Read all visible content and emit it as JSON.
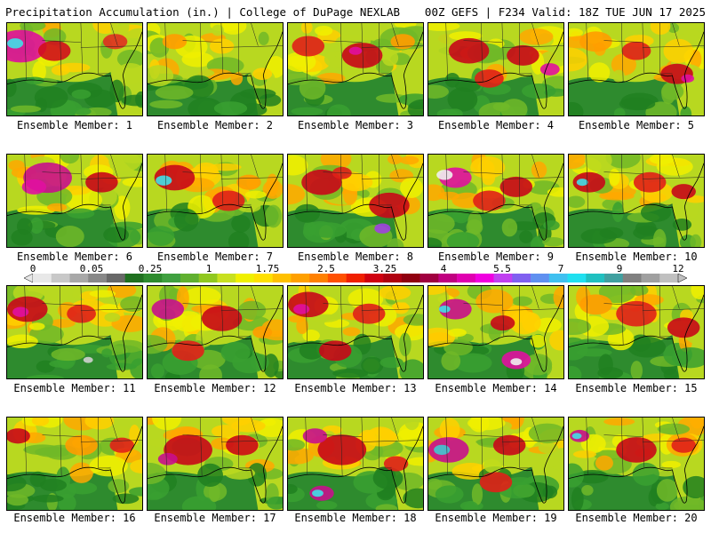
{
  "header": {
    "left": "Precipitation Accumulation (in.) | College of DuPage NEXLAB",
    "right": "00Z GEFS | F234 Valid: 18Z TUE JUN 17 2025"
  },
  "panels": [
    {
      "label": "Ensemble Member: 1",
      "hot": [
        [
          0.1,
          0.25,
          0.32,
          "#e0109a"
        ],
        [
          0.06,
          0.22,
          0.1,
          "#40e0e8"
        ],
        [
          0.35,
          0.3,
          0.2,
          "#d0101c"
        ],
        [
          0.8,
          0.2,
          0.15,
          "#e03020"
        ]
      ]
    },
    {
      "label": "Ensemble Member: 2",
      "hot": [
        [
          0.55,
          0.25,
          0.15,
          "#ffd000"
        ],
        [
          0.2,
          0.2,
          0.15,
          "#ff9c00"
        ],
        [
          0.85,
          0.55,
          0.12,
          "#ffd000"
        ]
      ]
    },
    {
      "label": "Ensemble Member: 3",
      "hot": [
        [
          0.55,
          0.35,
          0.25,
          "#c80818"
        ],
        [
          0.15,
          0.25,
          0.2,
          "#e02018"
        ],
        [
          0.5,
          0.3,
          0.08,
          "#e010a0"
        ],
        [
          0.85,
          0.2,
          0.15,
          "#ff9c00"
        ]
      ]
    },
    {
      "label": "Ensemble Member: 4",
      "hot": [
        [
          0.3,
          0.3,
          0.25,
          "#c80818"
        ],
        [
          0.7,
          0.35,
          0.2,
          "#c80818"
        ],
        [
          0.9,
          0.5,
          0.12,
          "#e010a0"
        ],
        [
          0.45,
          0.6,
          0.18,
          "#e02018"
        ]
      ]
    },
    {
      "label": "Ensemble Member: 5",
      "hot": [
        [
          0.8,
          0.55,
          0.2,
          "#c80818"
        ],
        [
          0.2,
          0.2,
          0.2,
          "#ff9c00"
        ],
        [
          0.88,
          0.6,
          0.08,
          "#e010a0"
        ],
        [
          0.5,
          0.3,
          0.18,
          "#e02018"
        ]
      ]
    },
    {
      "label": "Ensemble Member: 6",
      "hot": [
        [
          0.3,
          0.25,
          0.3,
          "#c8108c"
        ],
        [
          0.7,
          0.3,
          0.2,
          "#c80818"
        ],
        [
          0.2,
          0.35,
          0.15,
          "#e010a0"
        ]
      ]
    },
    {
      "label": "Ensemble Member: 7",
      "hot": [
        [
          0.2,
          0.25,
          0.25,
          "#c80818"
        ],
        [
          0.12,
          0.28,
          0.1,
          "#40e0e8"
        ],
        [
          0.6,
          0.5,
          0.2,
          "#e02018"
        ],
        [
          0.75,
          0.3,
          0.15,
          "#ff9c00"
        ]
      ]
    },
    {
      "label": "Ensemble Member: 8",
      "hot": [
        [
          0.25,
          0.3,
          0.25,
          "#c80818"
        ],
        [
          0.75,
          0.55,
          0.25,
          "#c80818"
        ],
        [
          0.7,
          0.8,
          0.1,
          "#a040e0"
        ],
        [
          0.4,
          0.2,
          0.12,
          "#e02018"
        ]
      ]
    },
    {
      "label": "Ensemble Member: 9",
      "hot": [
        [
          0.2,
          0.25,
          0.2,
          "#e010a0"
        ],
        [
          0.12,
          0.22,
          0.1,
          "#f0f0f0"
        ],
        [
          0.65,
          0.35,
          0.2,
          "#c80818"
        ],
        [
          0.45,
          0.5,
          0.2,
          "#e02018"
        ]
      ]
    },
    {
      "label": "Ensemble Member: 10",
      "hot": [
        [
          0.15,
          0.3,
          0.2,
          "#c80818"
        ],
        [
          0.1,
          0.3,
          0.07,
          "#40e0e8"
        ],
        [
          0.6,
          0.3,
          0.2,
          "#e02018"
        ],
        [
          0.85,
          0.4,
          0.15,
          "#c80818"
        ]
      ]
    },
    {
      "label": "Ensemble Member: 11",
      "hot": [
        [
          0.15,
          0.25,
          0.25,
          "#c80818"
        ],
        [
          0.1,
          0.28,
          0.1,
          "#e010a0"
        ],
        [
          0.55,
          0.3,
          0.18,
          "#e02018"
        ],
        [
          0.6,
          0.8,
          0.06,
          "#d0d0d0"
        ]
      ]
    },
    {
      "label": "Ensemble Member: 12",
      "hot": [
        [
          0.15,
          0.25,
          0.2,
          "#c8108c"
        ],
        [
          0.55,
          0.35,
          0.25,
          "#c80818"
        ],
        [
          0.3,
          0.7,
          0.2,
          "#e02018"
        ],
        [
          0.85,
          0.5,
          0.12,
          "#ff9c00"
        ]
      ]
    },
    {
      "label": "Ensemble Member: 13",
      "hot": [
        [
          0.15,
          0.2,
          0.25,
          "#c80818"
        ],
        [
          0.1,
          0.25,
          0.1,
          "#e010a0"
        ],
        [
          0.6,
          0.3,
          0.2,
          "#e02018"
        ],
        [
          0.35,
          0.7,
          0.2,
          "#c80818"
        ]
      ]
    },
    {
      "label": "Ensemble Member: 14",
      "hot": [
        [
          0.2,
          0.25,
          0.2,
          "#c8108c"
        ],
        [
          0.12,
          0.25,
          0.07,
          "#40e0e8"
        ],
        [
          0.65,
          0.8,
          0.18,
          "#e010a0"
        ],
        [
          0.65,
          0.82,
          0.07,
          "#f0f0f0"
        ],
        [
          0.55,
          0.4,
          0.15,
          "#c80818"
        ]
      ]
    },
    {
      "label": "Ensemble Member: 15",
      "hot": [
        [
          0.85,
          0.45,
          0.2,
          "#c80818"
        ],
        [
          0.5,
          0.3,
          0.25,
          "#e02018"
        ],
        [
          0.2,
          0.2,
          0.2,
          "#ff9c00"
        ]
      ]
    },
    {
      "label": "Ensemble Member: 16",
      "hot": [
        [
          0.08,
          0.2,
          0.15,
          "#c80818"
        ],
        [
          0.55,
          0.3,
          0.2,
          "#ff9c00"
        ],
        [
          0.85,
          0.3,
          0.15,
          "#e02018"
        ]
      ]
    },
    {
      "label": "Ensemble Member: 17",
      "hot": [
        [
          0.3,
          0.35,
          0.3,
          "#c80818"
        ],
        [
          0.15,
          0.45,
          0.12,
          "#c8108c"
        ],
        [
          0.7,
          0.3,
          0.2,
          "#c80818"
        ]
      ]
    },
    {
      "label": "Ensemble Member: 18",
      "hot": [
        [
          0.4,
          0.35,
          0.3,
          "#c80818"
        ],
        [
          0.2,
          0.2,
          0.15,
          "#c8108c"
        ],
        [
          0.25,
          0.82,
          0.15,
          "#c8108c"
        ],
        [
          0.22,
          0.82,
          0.07,
          "#40e0e8"
        ],
        [
          0.8,
          0.5,
          0.15,
          "#e02018"
        ]
      ]
    },
    {
      "label": "Ensemble Member: 19",
      "hot": [
        [
          0.15,
          0.35,
          0.25,
          "#c8108c"
        ],
        [
          0.1,
          0.35,
          0.1,
          "#40c8d0"
        ],
        [
          0.6,
          0.3,
          0.2,
          "#c80818"
        ],
        [
          0.5,
          0.7,
          0.2,
          "#e02018"
        ]
      ]
    },
    {
      "label": "Ensemble Member: 20",
      "hot": [
        [
          0.08,
          0.2,
          0.12,
          "#c8108c"
        ],
        [
          0.06,
          0.2,
          0.06,
          "#40e0e8"
        ],
        [
          0.5,
          0.35,
          0.25,
          "#c80818"
        ],
        [
          0.85,
          0.3,
          0.15,
          "#e02018"
        ]
      ]
    }
  ],
  "colorbar": {
    "labels": [
      "0",
      "0.05",
      "0.25",
      "1",
      "1.75",
      "2.5",
      "3.25",
      "4",
      "5.5",
      "7",
      "9",
      "12"
    ],
    "colors": [
      "#e8e8e8",
      "#c8c8c8",
      "#a8a8a8",
      "#888888",
      "#686868",
      "#207020",
      "#2e8b2e",
      "#40a040",
      "#60b030",
      "#90c820",
      "#c8e020",
      "#f0f000",
      "#ffe000",
      "#ffc000",
      "#ffa000",
      "#ff8000",
      "#ff5000",
      "#f02000",
      "#d00010",
      "#b00010",
      "#900010",
      "#a00040",
      "#c00080",
      "#e000b0",
      "#f000e0",
      "#c040f0",
      "#8060f0",
      "#6090f0",
      "#40c0f0",
      "#20e0f0",
      "#20c0c0",
      "#40a0a0",
      "#808080",
      "#a0a0a0",
      "#c0c0c0"
    ]
  }
}
